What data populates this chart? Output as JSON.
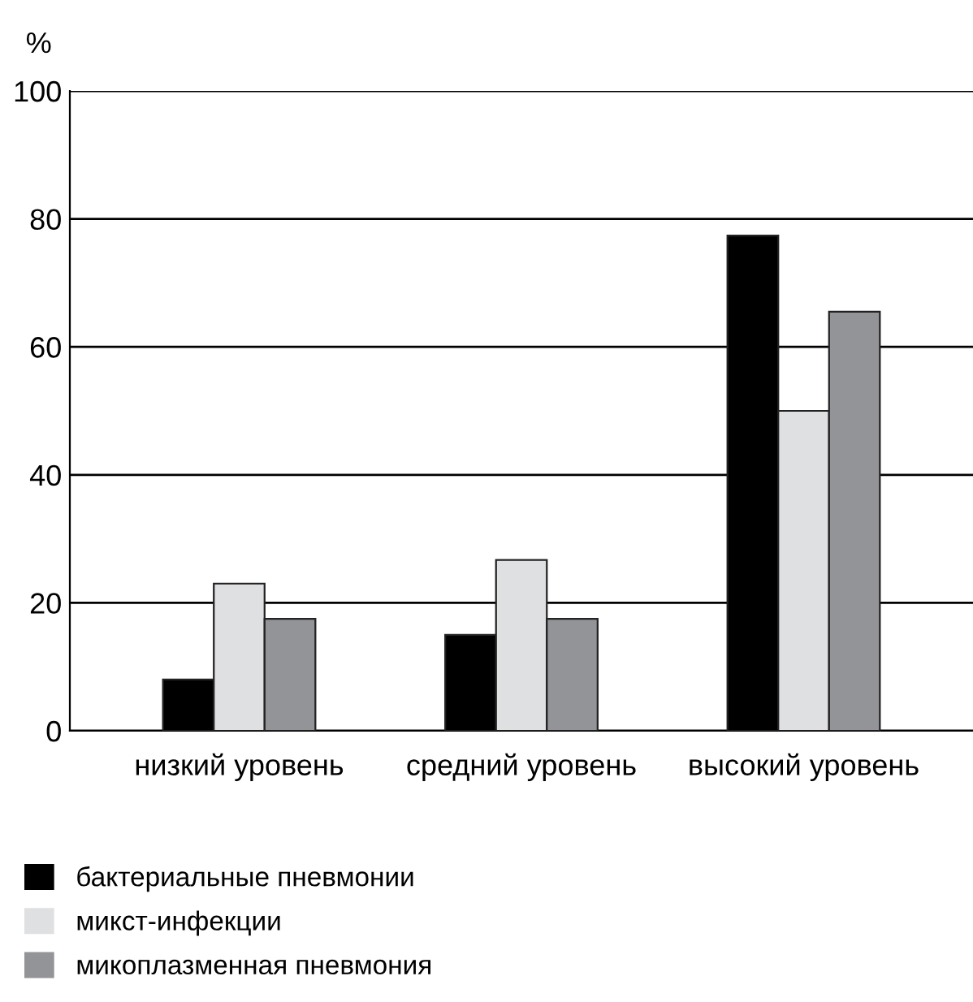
{
  "chart_data": {
    "type": "bar",
    "ylabel": "%",
    "categories": [
      "низкий уровень",
      "средний уровень",
      "высокий уровень"
    ],
    "series": [
      {
        "name": "бактериальные пневмонии",
        "color": "#000000",
        "values": [
          8,
          15,
          77.4
        ]
      },
      {
        "name": "микст-инфекции",
        "color": "#dfe0e2",
        "values": [
          23,
          26.7,
          50
        ]
      },
      {
        "name": "микоплазменная пневмония",
        "color": "#939498",
        "values": [
          17.5,
          17.5,
          65.5
        ]
      }
    ],
    "ylim": [
      0,
      100
    ],
    "yticks": [
      0,
      20,
      40,
      60,
      80,
      100
    ],
    "grid": "y",
    "legend": "bottom"
  }
}
